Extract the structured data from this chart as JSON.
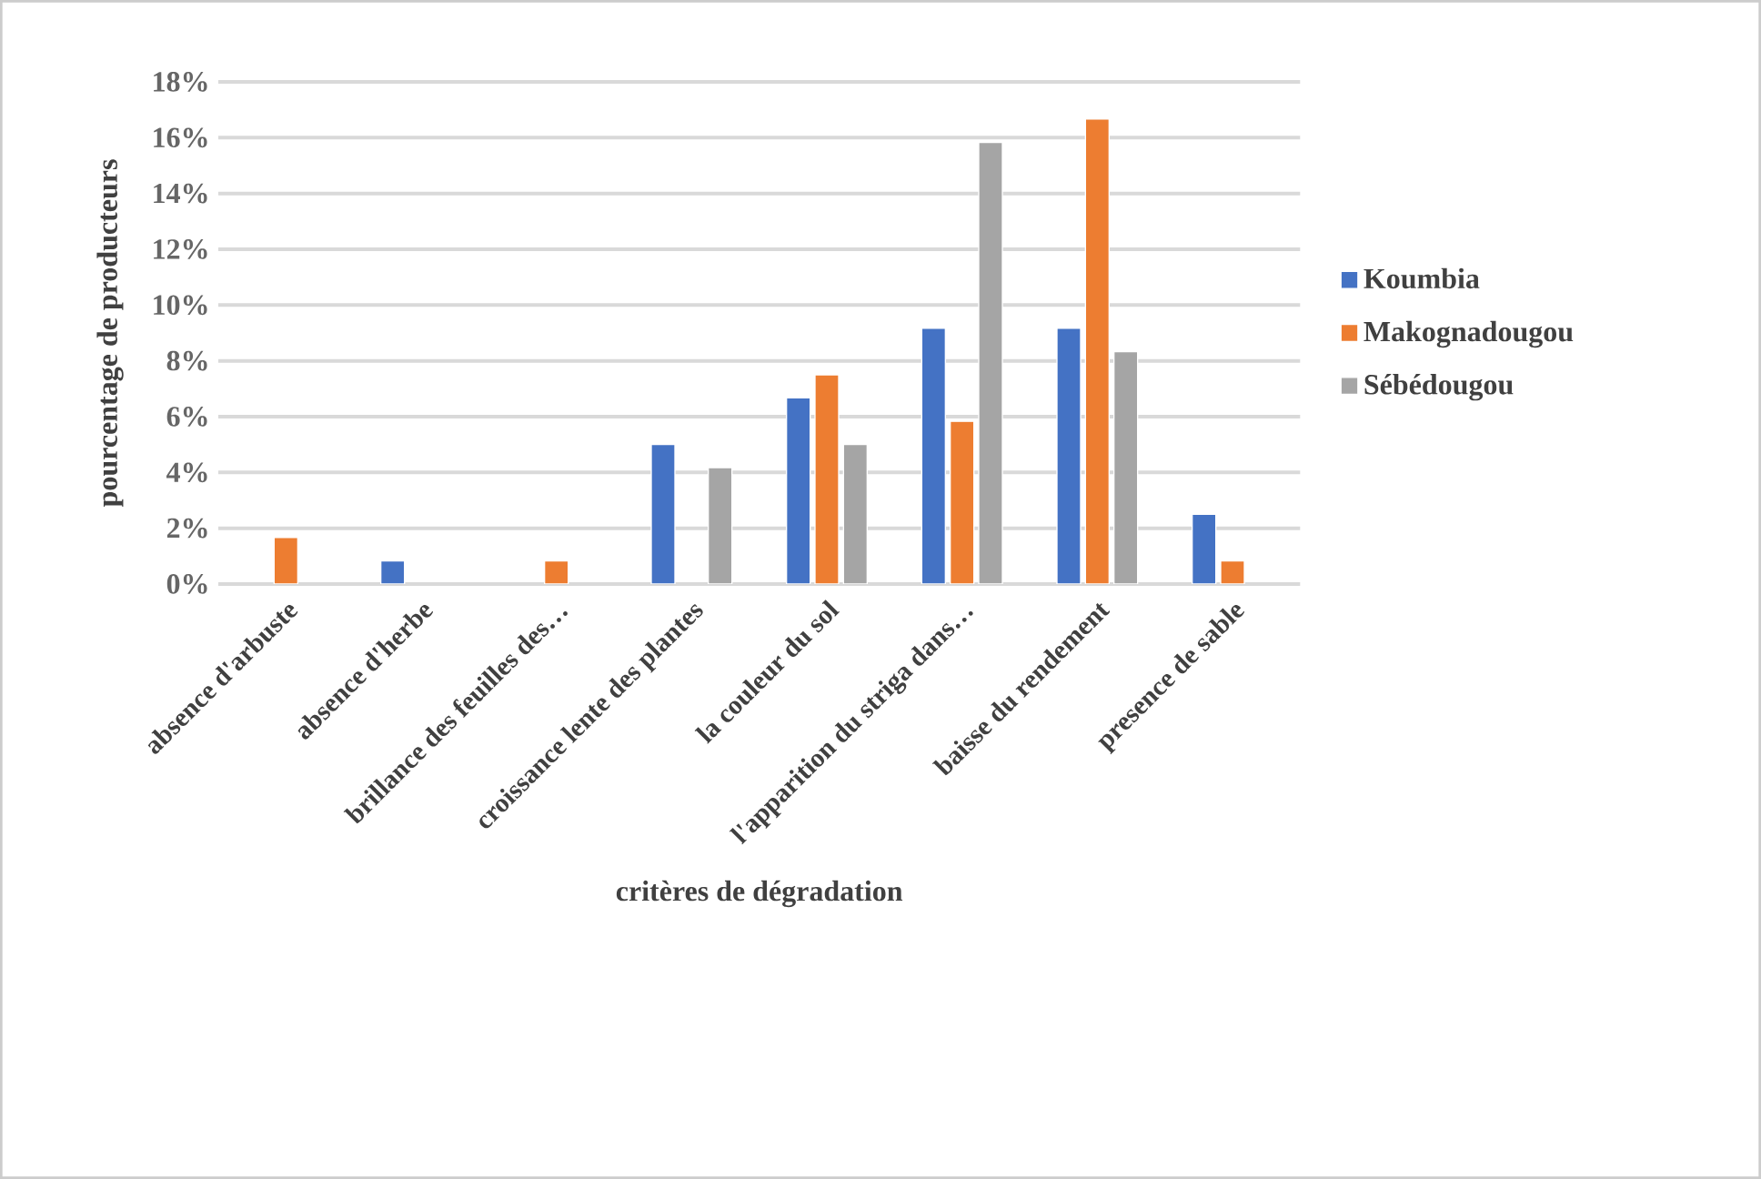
{
  "chart_data": {
    "type": "bar",
    "categories": [
      "absence d'arbuste",
      "absence d'herbe",
      "brillance des feuilles des…",
      "croissance lente des plantes",
      "la couleur du sol",
      "l'apparition du striga dans…",
      "baisse du rendement",
      "presence de sable"
    ],
    "series": [
      {
        "name": "Koumbia",
        "color": "#4472c4",
        "values": [
          null,
          0.83,
          null,
          5,
          6.67,
          9.17,
          9.17,
          2.5
        ]
      },
      {
        "name": "Makognadougou",
        "color": "#ed7d31",
        "values": [
          1.67,
          null,
          0.83,
          null,
          7.5,
          5.83,
          16.67,
          0.83
        ]
      },
      {
        "name": "Sébédougou",
        "color": "#a5a5a5",
        "values": [
          null,
          null,
          null,
          4.17,
          5,
          15.83,
          8.33,
          null
        ]
      }
    ],
    "ylim": [
      0,
      18
    ],
    "yticks": [
      {
        "value": 0,
        "label": "0%"
      },
      {
        "value": 2,
        "label": "2%"
      },
      {
        "value": 4,
        "label": "4%"
      },
      {
        "value": 6,
        "label": "6%"
      },
      {
        "value": 8,
        "label": "8%"
      },
      {
        "value": 10,
        "label": "10%"
      },
      {
        "value": 12,
        "label": "12%"
      },
      {
        "value": 14,
        "label": "14%"
      },
      {
        "value": 16,
        "label": "16%"
      },
      {
        "value": 18,
        "label": "18%"
      }
    ],
    "xlabel": "critères de dégradation",
    "ylabel": "pourcentage de producteurs",
    "grid": "y",
    "legend": "right"
  }
}
